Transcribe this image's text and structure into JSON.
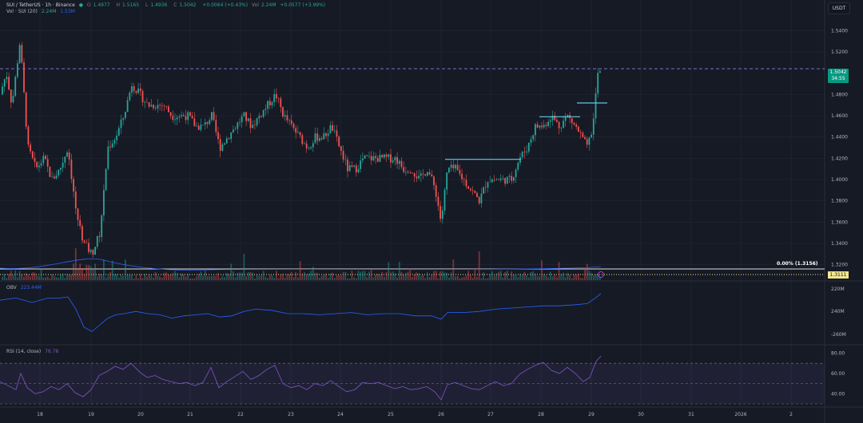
{
  "header": {
    "symbol": "SUI / TetherUS · 1h · Binance",
    "ohlc": [
      {
        "k": "O",
        "v": "1.4977"
      },
      {
        "k": "H",
        "v": "1.5165"
      },
      {
        "k": "L",
        "v": "1.4936"
      },
      {
        "k": "C",
        "v": "1.5042"
      }
    ],
    "change": "+0.0064 (+0.43%)",
    "vol_label": "Vol",
    "vol_value": "2.24M",
    "vol_change": "+0.0577 (+3.99%)",
    "vol_ma_label": "Vol · SUI (20)",
    "vol_ma_values": [
      "2.24M",
      "1.53M"
    ]
  },
  "toolbar": {
    "unit": "USDT"
  },
  "price_axis": {
    "ticks": [
      "1.5400",
      "1.5200",
      "1.4800",
      "1.4600",
      "1.4400",
      "1.4200",
      "1.4000",
      "1.3800",
      "1.3600",
      "1.3400",
      "1.3200"
    ],
    "current_price": "1.5042",
    "countdown": "34:55",
    "second_tag": "1.3111"
  },
  "fib_label": "0.00% (1.3156)",
  "obv": {
    "title": "OBV",
    "value": "223.44M",
    "axis_ticks": [
      "220M",
      "240M",
      "-260M"
    ]
  },
  "rsi": {
    "title": "RSI (14, close)",
    "value": "76.78",
    "axis_ticks": [
      "80.00",
      "60.00",
      "40.00"
    ]
  },
  "time_axis": {
    "labels": [
      "18",
      "19",
      "20",
      "21",
      "22",
      "23",
      "24",
      "25",
      "26",
      "27",
      "28",
      "29",
      "30",
      "31",
      "2026",
      "2"
    ]
  },
  "colors": {
    "background": "#161a25",
    "up": "#26a69a",
    "down": "#ef5350",
    "level_line": "#5fc8e0",
    "obv_line": "#2962ff",
    "rsi_line": "#7e57c2"
  },
  "chart_data": {
    "type": "candlestick",
    "price_range": [
      1.31,
      1.55
    ],
    "horizontal_dashed_level": 1.5042,
    "price_path": [
      [
        0,
        1.48
      ],
      [
        8,
        1.5
      ],
      [
        15,
        1.47
      ],
      [
        25,
        1.53
      ],
      [
        35,
        1.43
      ],
      [
        45,
        1.41
      ],
      [
        55,
        1.42
      ],
      [
        65,
        1.4
      ],
      [
        75,
        1.41
      ],
      [
        85,
        1.43
      ],
      [
        95,
        1.37
      ],
      [
        105,
        1.34
      ],
      [
        115,
        1.33
      ],
      [
        125,
        1.35
      ],
      [
        135,
        1.43
      ],
      [
        145,
        1.44
      ],
      [
        155,
        1.46
      ],
      [
        165,
        1.49
      ],
      [
        175,
        1.48
      ],
      [
        185,
        1.47
      ],
      [
        195,
        1.47
      ],
      [
        205,
        1.47
      ],
      [
        215,
        1.46
      ],
      [
        225,
        1.46
      ],
      [
        235,
        1.46
      ],
      [
        245,
        1.45
      ],
      [
        255,
        1.45
      ],
      [
        265,
        1.46
      ],
      [
        275,
        1.43
      ],
      [
        285,
        1.44
      ],
      [
        295,
        1.45
      ],
      [
        305,
        1.46
      ],
      [
        315,
        1.45
      ],
      [
        325,
        1.46
      ],
      [
        335,
        1.47
      ],
      [
        345,
        1.48
      ],
      [
        355,
        1.46
      ],
      [
        365,
        1.45
      ],
      [
        375,
        1.44
      ],
      [
        385,
        1.43
      ],
      [
        395,
        1.44
      ],
      [
        405,
        1.44
      ],
      [
        415,
        1.45
      ],
      [
        425,
        1.43
      ],
      [
        435,
        1.41
      ],
      [
        445,
        1.41
      ],
      [
        455,
        1.42
      ],
      [
        465,
        1.42
      ],
      [
        475,
        1.42
      ],
      [
        485,
        1.42
      ],
      [
        495,
        1.42
      ],
      [
        505,
        1.41
      ],
      [
        515,
        1.41
      ],
      [
        525,
        1.4
      ],
      [
        535,
        1.41
      ],
      [
        545,
        1.39
      ],
      [
        552,
        1.36
      ],
      [
        560,
        1.41
      ],
      [
        570,
        1.41
      ],
      [
        580,
        1.4
      ],
      [
        590,
        1.39
      ],
      [
        600,
        1.38
      ],
      [
        610,
        1.4
      ],
      [
        620,
        1.4
      ],
      [
        630,
        1.4
      ],
      [
        640,
        1.4
      ],
      [
        650,
        1.42
      ],
      [
        660,
        1.43
      ],
      [
        670,
        1.45
      ],
      [
        680,
        1.45
      ],
      [
        690,
        1.46
      ],
      [
        700,
        1.45
      ],
      [
        710,
        1.46
      ],
      [
        720,
        1.45
      ],
      [
        728,
        1.44
      ],
      [
        735,
        1.43
      ],
      [
        742,
        1.45
      ],
      [
        748,
        1.5
      ],
      [
        752,
        1.5
      ]
    ],
    "resistance_segments": [
      {
        "x1": 557,
        "x2": 652,
        "price": 1.419
      },
      {
        "x1": 675,
        "x2": 726,
        "price": 1.459
      },
      {
        "x1": 722,
        "x2": 760,
        "price": 1.472
      }
    ],
    "obv_range": [
      -265,
      -215
    ],
    "obv_path": [
      [
        0,
        -228
      ],
      [
        20,
        -226
      ],
      [
        40,
        -230
      ],
      [
        60,
        -226
      ],
      [
        75,
        -226
      ],
      [
        85,
        -225
      ],
      [
        95,
        -236
      ],
      [
        105,
        -252
      ],
      [
        115,
        -256
      ],
      [
        125,
        -250
      ],
      [
        135,
        -244
      ],
      [
        145,
        -241
      ],
      [
        155,
        -240
      ],
      [
        170,
        -238
      ],
      [
        185,
        -240
      ],
      [
        200,
        -241
      ],
      [
        215,
        -244
      ],
      [
        230,
        -242
      ],
      [
        245,
        -241
      ],
      [
        260,
        -240
      ],
      [
        275,
        -243
      ],
      [
        290,
        -242
      ],
      [
        305,
        -238
      ],
      [
        320,
        -236
      ],
      [
        340,
        -237
      ],
      [
        360,
        -240
      ],
      [
        380,
        -240
      ],
      [
        400,
        -241
      ],
      [
        420,
        -240
      ],
      [
        440,
        -239
      ],
      [
        460,
        -241
      ],
      [
        480,
        -240
      ],
      [
        500,
        -240
      ],
      [
        520,
        -242
      ],
      [
        540,
        -242
      ],
      [
        552,
        -245
      ],
      [
        560,
        -239
      ],
      [
        580,
        -239
      ],
      [
        600,
        -238
      ],
      [
        620,
        -236
      ],
      [
        640,
        -235
      ],
      [
        660,
        -234
      ],
      [
        680,
        -233
      ],
      [
        700,
        -233
      ],
      [
        720,
        -232
      ],
      [
        735,
        -231
      ],
      [
        745,
        -226
      ],
      [
        752,
        -222
      ]
    ],
    "rsi_range": [
      30,
      82
    ],
    "rsi_levels": [
      70,
      50,
      30
    ],
    "rsi_path": [
      [
        0,
        52
      ],
      [
        10,
        48
      ],
      [
        20,
        44
      ],
      [
        26,
        60
      ],
      [
        34,
        46
      ],
      [
        44,
        40
      ],
      [
        54,
        42
      ],
      [
        64,
        47
      ],
      [
        74,
        44
      ],
      [
        84,
        50
      ],
      [
        94,
        41
      ],
      [
        104,
        37
      ],
      [
        114,
        44
      ],
      [
        124,
        58
      ],
      [
        134,
        62
      ],
      [
        144,
        67
      ],
      [
        154,
        64
      ],
      [
        164,
        70
      ],
      [
        174,
        62
      ],
      [
        184,
        56
      ],
      [
        194,
        58
      ],
      [
        204,
        54
      ],
      [
        214,
        52
      ],
      [
        224,
        50
      ],
      [
        234,
        51
      ],
      [
        244,
        48
      ],
      [
        254,
        51
      ],
      [
        264,
        66
      ],
      [
        274,
        46
      ],
      [
        284,
        52
      ],
      [
        294,
        57
      ],
      [
        304,
        62
      ],
      [
        314,
        54
      ],
      [
        324,
        58
      ],
      [
        334,
        64
      ],
      [
        344,
        68
      ],
      [
        354,
        50
      ],
      [
        364,
        46
      ],
      [
        374,
        48
      ],
      [
        384,
        44
      ],
      [
        394,
        50
      ],
      [
        404,
        48
      ],
      [
        414,
        53
      ],
      [
        424,
        47
      ],
      [
        434,
        42
      ],
      [
        444,
        44
      ],
      [
        454,
        51
      ],
      [
        464,
        50
      ],
      [
        474,
        51
      ],
      [
        484,
        48
      ],
      [
        494,
        45
      ],
      [
        504,
        47
      ],
      [
        514,
        44
      ],
      [
        524,
        45
      ],
      [
        534,
        47
      ],
      [
        544,
        42
      ],
      [
        552,
        34
      ],
      [
        560,
        49
      ],
      [
        570,
        51
      ],
      [
        580,
        48
      ],
      [
        590,
        45
      ],
      [
        600,
        44
      ],
      [
        610,
        48
      ],
      [
        620,
        52
      ],
      [
        630,
        48
      ],
      [
        640,
        50
      ],
      [
        650,
        59
      ],
      [
        660,
        64
      ],
      [
        670,
        68
      ],
      [
        680,
        71
      ],
      [
        690,
        63
      ],
      [
        700,
        60
      ],
      [
        710,
        66
      ],
      [
        720,
        60
      ],
      [
        730,
        52
      ],
      [
        738,
        56
      ],
      [
        746,
        72
      ],
      [
        752,
        77
      ]
    ]
  }
}
